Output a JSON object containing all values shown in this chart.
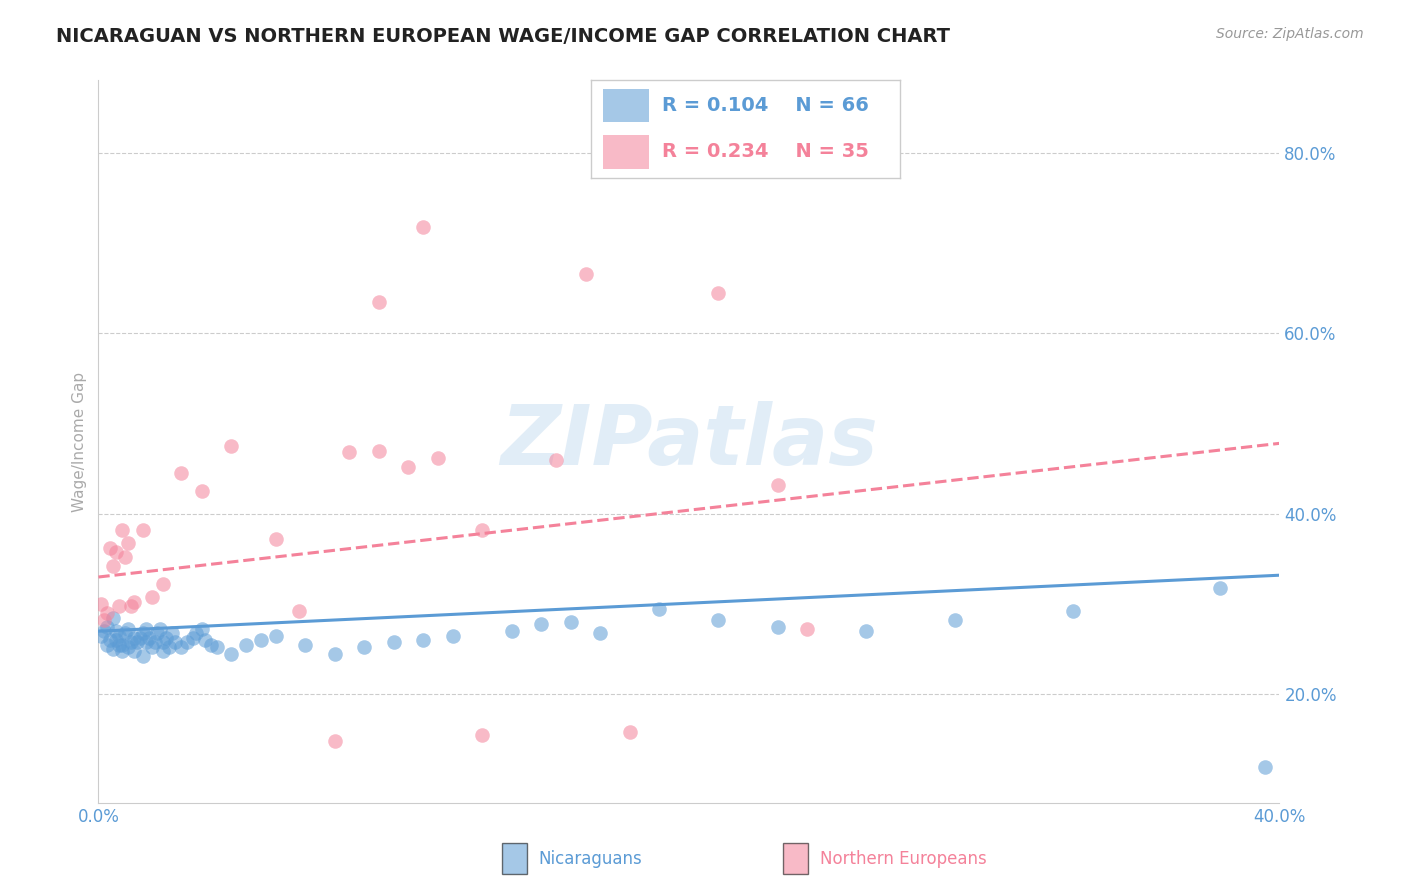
{
  "title": "NICARAGUAN VS NORTHERN EUROPEAN WAGE/INCOME GAP CORRELATION CHART",
  "source_text": "Source: ZipAtlas.com",
  "ylabel": "Wage/Income Gap",
  "watermark": "ZIPatlas",
  "xlim": [
    0.0,
    0.4
  ],
  "ylim": [
    0.08,
    0.88
  ],
  "xticks": [
    0.0,
    0.4
  ],
  "xtick_labels": [
    "0.0%",
    "40.0%"
  ],
  "yticks_right": [
    0.2,
    0.4,
    0.6,
    0.8
  ],
  "ytick_labels_right": [
    "20.0%",
    "40.0%",
    "60.0%",
    "80.0%"
  ],
  "blue_color": "#5B9BD5",
  "pink_color": "#F4829A",
  "text_dark": "#333333",
  "legend_R1": "R = 0.104",
  "legend_N1": "N = 66",
  "legend_R2": "R = 0.234",
  "legend_N2": "N = 35",
  "blue_intercept": 0.27,
  "blue_slope": 0.155,
  "pink_intercept": 0.33,
  "pink_slope": 0.37,
  "blue_points_x": [
    0.001,
    0.002,
    0.003,
    0.003,
    0.004,
    0.005,
    0.005,
    0.006,
    0.006,
    0.007,
    0.007,
    0.008,
    0.008,
    0.009,
    0.01,
    0.01,
    0.011,
    0.012,
    0.012,
    0.013,
    0.014,
    0.015,
    0.015,
    0.016,
    0.016,
    0.017,
    0.018,
    0.019,
    0.02,
    0.021,
    0.022,
    0.022,
    0.023,
    0.024,
    0.025,
    0.026,
    0.028,
    0.03,
    0.032,
    0.033,
    0.035,
    0.036,
    0.038,
    0.04,
    0.045,
    0.05,
    0.055,
    0.06,
    0.07,
    0.08,
    0.09,
    0.1,
    0.11,
    0.12,
    0.14,
    0.15,
    0.16,
    0.17,
    0.19,
    0.21,
    0.23,
    0.26,
    0.29,
    0.33,
    0.38,
    0.395
  ],
  "blue_points_y": [
    0.265,
    0.27,
    0.255,
    0.275,
    0.26,
    0.25,
    0.285,
    0.26,
    0.27,
    0.255,
    0.265,
    0.255,
    0.248,
    0.268,
    0.252,
    0.272,
    0.258,
    0.262,
    0.248,
    0.258,
    0.262,
    0.268,
    0.242,
    0.258,
    0.272,
    0.262,
    0.252,
    0.258,
    0.268,
    0.272,
    0.258,
    0.248,
    0.262,
    0.252,
    0.268,
    0.258,
    0.252,
    0.258,
    0.262,
    0.268,
    0.272,
    0.26,
    0.255,
    0.252,
    0.245,
    0.255,
    0.26,
    0.265,
    0.255,
    0.245,
    0.252,
    0.258,
    0.26,
    0.265,
    0.27,
    0.278,
    0.28,
    0.268,
    0.295,
    0.282,
    0.275,
    0.27,
    0.282,
    0.292,
    0.318,
    0.12
  ],
  "pink_points_x": [
    0.001,
    0.002,
    0.003,
    0.004,
    0.005,
    0.006,
    0.007,
    0.008,
    0.009,
    0.01,
    0.011,
    0.012,
    0.015,
    0.018,
    0.022,
    0.028,
    0.035,
    0.045,
    0.06,
    0.08,
    0.095,
    0.11,
    0.13,
    0.155,
    0.18,
    0.21,
    0.24,
    0.13,
    0.085,
    0.095,
    0.115,
    0.105,
    0.068,
    0.165,
    0.23
  ],
  "pink_points_y": [
    0.3,
    0.282,
    0.29,
    0.362,
    0.342,
    0.358,
    0.298,
    0.382,
    0.352,
    0.368,
    0.298,
    0.302,
    0.382,
    0.308,
    0.322,
    0.445,
    0.425,
    0.475,
    0.372,
    0.148,
    0.635,
    0.718,
    0.382,
    0.46,
    0.158,
    0.645,
    0.272,
    0.155,
    0.468,
    0.47,
    0.462,
    0.452,
    0.292,
    0.665,
    0.432
  ]
}
